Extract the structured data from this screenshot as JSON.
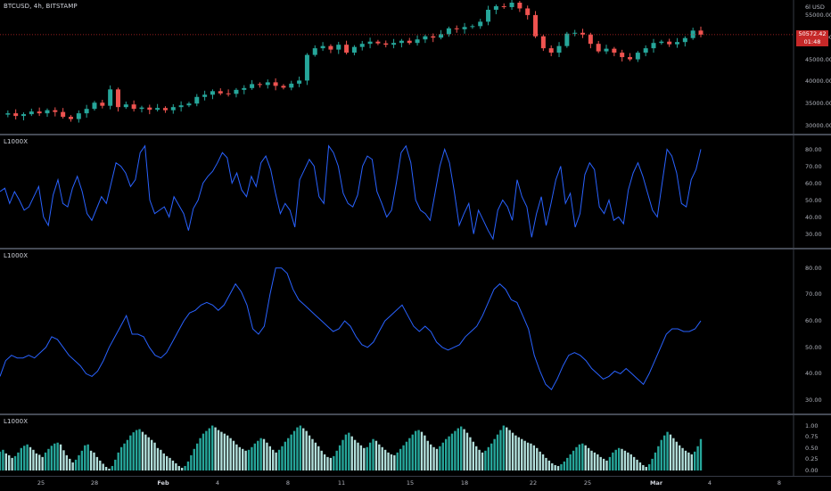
{
  "main_chart": {
    "title": "BTCUSD, 4h, BITSTAMP",
    "currency_label": "USD",
    "scale_mode_letter": "6l",
    "current_price": "50572.42",
    "countdown": "01:48",
    "y_ticks": [
      "55000.00",
      "50000.00",
      "45000.00",
      "40000.00",
      "35000.00",
      "30000.00"
    ],
    "y_tick_values": [
      55000,
      50000,
      45000,
      40000,
      35000,
      30000
    ],
    "colors": {
      "up": "#26a69a",
      "down": "#ef5350",
      "price_line": "#c62828"
    }
  },
  "osc1": {
    "label": "L1000X",
    "y_ticks": [
      "80.00",
      "70.00",
      "60.00",
      "50.00",
      "40.00",
      "30.00"
    ],
    "y_tick_values": [
      80,
      70,
      60,
      50,
      40,
      30
    ],
    "line_color": "#2962ff"
  },
  "osc2": {
    "label": "L1000X",
    "y_ticks": [
      "80.00",
      "70.00",
      "60.00",
      "50.00",
      "40.00",
      "30.00"
    ],
    "y_tick_values": [
      80,
      70,
      60,
      50,
      40,
      30
    ],
    "line_color": "#2962ff"
  },
  "histogram": {
    "label": "L1000X",
    "y_ticks": [
      "1.00",
      "0.75",
      "0.50",
      "0.25",
      "0.00"
    ],
    "y_tick_values": [
      1.0,
      0.75,
      0.5,
      0.25,
      0.0
    ],
    "colors": {
      "strong": "#26a69a",
      "light": "#b2dfdb"
    }
  },
  "x_axis": {
    "labels": [
      {
        "text": "25",
        "bold": false
      },
      {
        "text": "28",
        "bold": false
      },
      {
        "text": "Feb",
        "bold": true
      },
      {
        "text": "4",
        "bold": false
      },
      {
        "text": "8",
        "bold": false
      },
      {
        "text": "11",
        "bold": false
      },
      {
        "text": "15",
        "bold": false
      },
      {
        "text": "18",
        "bold": false
      },
      {
        "text": "22",
        "bold": false
      },
      {
        "text": "25",
        "bold": false
      },
      {
        "text": "Mar",
        "bold": true
      },
      {
        "text": "4",
        "bold": false
      },
      {
        "text": "8",
        "bold": false
      }
    ]
  },
  "chart_data": [
    {
      "type": "line",
      "title": "",
      "series": [
        {
          "name": "BTCUSD",
          "values": [
            32500,
            32800,
            32200,
            32600,
            33200,
            32800,
            33500,
            33100,
            32000,
            31500,
            32800,
            33800,
            35200,
            34500,
            38200,
            34200,
            34800,
            33800,
            34100,
            33600,
            34000,
            33500,
            34200,
            34600,
            35000,
            36500,
            37000,
            37800,
            37300,
            37200,
            38100,
            38500,
            39400,
            39200,
            39800,
            39000,
            38600,
            39500,
            40200,
            46000,
            47500,
            48000,
            47200,
            48300,
            46500,
            47800,
            48500,
            49000,
            48600,
            48300,
            48700,
            49200,
            48700,
            49500,
            50200,
            49900,
            50700,
            52000,
            51800,
            52300,
            52500,
            53500,
            56200,
            57000,
            56800,
            57800,
            56500,
            55000,
            50200,
            47500,
            46500,
            48000,
            50800,
            51000,
            50600,
            48500,
            46800,
            47400,
            46500,
            45500,
            45000,
            46500,
            47500,
            48700,
            49000,
            48400,
            48900,
            49800,
            51500,
            50572
          ]
        }
      ],
      "xlabel": "",
      "ylabel": "",
      "ylim": [
        28800,
        57600
      ]
    },
    {
      "type": "line",
      "title": "",
      "series": [
        {
          "name": "L1000X",
          "values": [
            55,
            57,
            48,
            55,
            50,
            44,
            46,
            52,
            58,
            40,
            35,
            53,
            62,
            48,
            46,
            57,
            64,
            55,
            42,
            38,
            45,
            52,
            48,
            60,
            72,
            70,
            66,
            58,
            62,
            78,
            82,
            50,
            42,
            44,
            46,
            40,
            52,
            47,
            42,
            32,
            45,
            50,
            60,
            64,
            67,
            72,
            78,
            75,
            60,
            66,
            56,
            52,
            64,
            58,
            72,
            76,
            68,
            54,
            42,
            48,
            44,
            34,
            62,
            68,
            74,
            70,
            52,
            48,
            82,
            78,
            70,
            54,
            48,
            46,
            53,
            70,
            76,
            74,
            55,
            48,
            40,
            44,
            60,
            78,
            82,
            72,
            50,
            44,
            42,
            38,
            54,
            70,
            80,
            72,
            55,
            35,
            42,
            48,
            30,
            44,
            38,
            32,
            27,
            44,
            50,
            46,
            38,
            62,
            52,
            46,
            28,
            42,
            52,
            35,
            48,
            62,
            70,
            48,
            54,
            34,
            42,
            65,
            72,
            68,
            46,
            42,
            50,
            38,
            40,
            36,
            56,
            66,
            72,
            64,
            54,
            44,
            40,
            60,
            80,
            76,
            66,
            48,
            46,
            62,
            68,
            80
          ]
        }
      ],
      "xlabel": "",
      "ylabel": "",
      "ylim": [
        25,
        85
      ]
    },
    {
      "type": "line",
      "title": "",
      "series": [
        {
          "name": "L1000X",
          "values": [
            39,
            45,
            47,
            46,
            46,
            47,
            46,
            48,
            50,
            54,
            53,
            50,
            47,
            45,
            43,
            40,
            39,
            41,
            45,
            50,
            54,
            58,
            62,
            55,
            55,
            54,
            50,
            47,
            46,
            48,
            52,
            56,
            60,
            63,
            64,
            66,
            67,
            66,
            64,
            66,
            70,
            74,
            71,
            66,
            57,
            55,
            58,
            70,
            80,
            80,
            78,
            72,
            68,
            66,
            64,
            62,
            60,
            58,
            56,
            57,
            60,
            58,
            54,
            51,
            50,
            52,
            56,
            60,
            62,
            64,
            66,
            62,
            58,
            56,
            58,
            56,
            52,
            50,
            49,
            50,
            51,
            54,
            56,
            58,
            62,
            67,
            72,
            74,
            72,
            68,
            67,
            62,
            57,
            47,
            41,
            36,
            34,
            38,
            43,
            47,
            48,
            47,
            45,
            42,
            40,
            38,
            39,
            41,
            40,
            42,
            40,
            38,
            36,
            40,
            45,
            50,
            55,
            57,
            57,
            56,
            56,
            57,
            60
          ]
        }
      ],
      "xlabel": "",
      "ylabel": "",
      "ylim": [
        27,
        85
      ]
    },
    {
      "type": "bar",
      "title": "",
      "series": [
        {
          "name": "L1000X",
          "values": [
            0.42,
            0.46,
            0.38,
            0.34,
            0.28,
            0.32,
            0.4,
            0.5,
            0.55,
            0.58,
            0.52,
            0.46,
            0.38,
            0.35,
            0.3,
            0.4,
            0.48,
            0.55,
            0.6,
            0.62,
            0.58,
            0.45,
            0.34,
            0.26,
            0.18,
            0.24,
            0.34,
            0.44,
            0.56,
            0.58,
            0.44,
            0.4,
            0.3,
            0.22,
            0.15,
            0.08,
            0.04,
            0.1,
            0.24,
            0.4,
            0.52,
            0.6,
            0.68,
            0.78,
            0.85,
            0.9,
            0.92,
            0.86,
            0.8,
            0.74,
            0.68,
            0.62,
            0.5,
            0.46,
            0.38,
            0.32,
            0.28,
            0.22,
            0.16,
            0.1,
            0.06,
            0.1,
            0.2,
            0.34,
            0.48,
            0.6,
            0.72,
            0.82,
            0.88,
            0.94,
            1.0,
            0.96,
            0.9,
            0.86,
            0.82,
            0.78,
            0.72,
            0.66,
            0.58,
            0.52,
            0.48,
            0.44,
            0.46,
            0.52,
            0.6,
            0.66,
            0.72,
            0.7,
            0.62,
            0.54,
            0.46,
            0.4,
            0.46,
            0.54,
            0.64,
            0.72,
            0.8,
            0.88,
            0.96,
            1.0,
            0.94,
            0.88,
            0.78,
            0.7,
            0.62,
            0.54,
            0.44,
            0.36,
            0.3,
            0.28,
            0.32,
            0.44,
            0.56,
            0.68,
            0.8,
            0.84,
            0.76,
            0.68,
            0.62,
            0.56,
            0.5,
            0.52,
            0.62,
            0.7,
            0.66,
            0.58,
            0.52,
            0.46,
            0.4,
            0.36,
            0.34,
            0.4,
            0.48,
            0.56,
            0.64,
            0.72,
            0.8,
            0.88,
            0.9,
            0.86,
            0.78,
            0.66,
            0.58,
            0.52,
            0.48,
            0.54,
            0.62,
            0.7,
            0.76,
            0.82,
            0.88,
            0.94,
            0.98,
            0.92,
            0.84,
            0.74,
            0.64,
            0.54,
            0.46,
            0.4,
            0.44,
            0.52,
            0.6,
            0.7,
            0.8,
            0.9,
            1.0,
            0.96,
            0.9,
            0.84,
            0.78,
            0.74,
            0.7,
            0.66,
            0.62,
            0.6,
            0.56,
            0.5,
            0.42,
            0.36,
            0.28,
            0.22,
            0.16,
            0.12,
            0.1,
            0.14,
            0.2,
            0.28,
            0.36,
            0.44,
            0.52,
            0.58,
            0.6,
            0.56,
            0.5,
            0.44,
            0.4,
            0.36,
            0.3,
            0.26,
            0.22,
            0.3,
            0.4,
            0.46,
            0.5,
            0.48,
            0.44,
            0.4,
            0.36,
            0.3,
            0.24,
            0.18,
            0.12,
            0.08,
            0.14,
            0.26,
            0.4,
            0.54,
            0.68,
            0.78,
            0.86,
            0.8,
            0.72,
            0.64,
            0.56,
            0.5,
            0.44,
            0.4,
            0.36,
            0.42,
            0.54,
            0.7
          ]
        }
      ],
      "xlabel": "",
      "ylabel": "",
      "ylim": [
        -0.04,
        1.15
      ]
    }
  ]
}
